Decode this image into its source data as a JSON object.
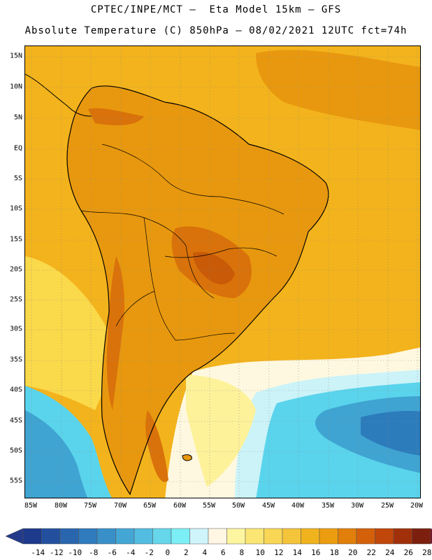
{
  "header": {
    "line1": "CPTEC/INPE/MCT –  Eta Model 15km – GFS",
    "line2": "Absolute Temperature (C) 850hPa – 08/02/2021 12UTC fct=74h"
  },
  "map": {
    "lat_labels": [
      "15N",
      "10N",
      "5N",
      "EQ",
      "5S",
      "10S",
      "15S",
      "20S",
      "25S",
      "30S",
      "35S",
      "40S",
      "45S",
      "50S",
      "55S"
    ],
    "lon_labels": [
      "85W",
      "80W",
      "75W",
      "70W",
      "65W",
      "60W",
      "55W",
      "50W",
      "45W",
      "40W",
      "35W",
      "30W",
      "25W",
      "20W"
    ],
    "colors": {
      "background": "#f3b31c",
      "warm_orange": "#e8980e",
      "hot_orange": "#d9720a",
      "hottest": "#c95a08",
      "light_yellow": "#fad94a",
      "pale_yellow": "#fdf29a",
      "cream": "#fff8e0",
      "pale_cyan": "#cbf3f8",
      "cyan": "#5ad4ec",
      "blue": "#3fa4d2",
      "deep_blue": "#2c7cbc",
      "coast": "#000000"
    }
  },
  "colorbar": {
    "labels": [
      "-14",
      "-12",
      "-10",
      "-8",
      "-6",
      "-4",
      "-2",
      "0",
      "2",
      "4",
      "6",
      "8",
      "10",
      "12",
      "14",
      "16",
      "18",
      "20",
      "22",
      "24",
      "26",
      "28"
    ],
    "colors": [
      "#1d3a8c",
      "#23509e",
      "#2a66ae",
      "#2f7bbd",
      "#3990c9",
      "#44a6d5",
      "#52bde0",
      "#66d6eb",
      "#7ceef5",
      "#cff5fb",
      "#fff6e3",
      "#fdf5a0",
      "#fbe673",
      "#f9d655",
      "#f4c43a",
      "#f0b31d",
      "#ec9d0f",
      "#e27e0a",
      "#d4600a",
      "#c0460a",
      "#a1300a",
      "#7c1f0e"
    ],
    "low_end_color": "#233a8a",
    "high_end_color": "#7a0f2a"
  }
}
